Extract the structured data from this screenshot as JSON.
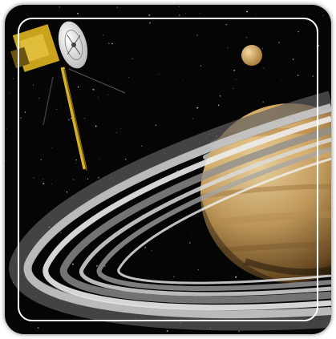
{
  "image": {
    "subject": "cassini-saturn-space-scene",
    "colors": {
      "space": "#050505",
      "planet_light": "#f3d49a",
      "planet_mid": "#c89a55",
      "planet_dark": "#4a3217",
      "ring": "#d8d8d8",
      "moon": "#e2b66e",
      "dish": "#efefef",
      "boom": "#d6b12a",
      "frame": "#ffffff"
    }
  }
}
